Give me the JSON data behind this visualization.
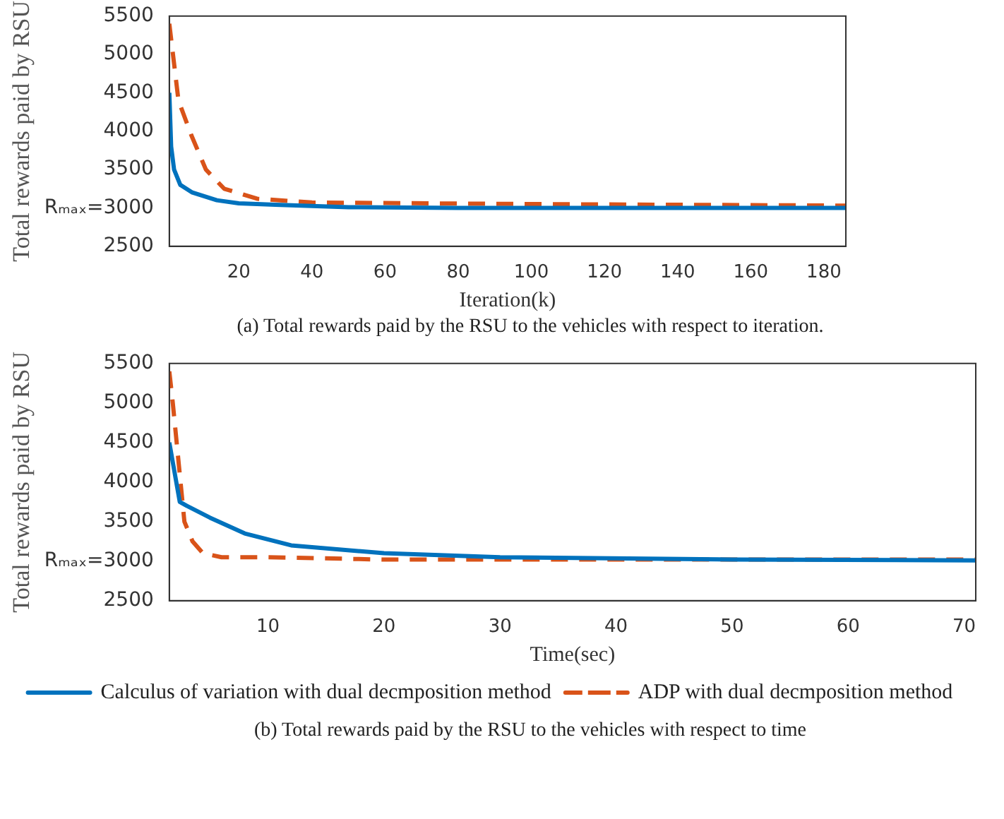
{
  "chart_data": [
    {
      "type": "line",
      "xlabel": "Iteration(k)",
      "ylabel": "Total rewards paid by RSU",
      "annotations": [
        "(a) Total rewards paid by the RSU to the vehicles with respect to iteration."
      ],
      "xlim": [
        1,
        186
      ],
      "xticks": [
        20,
        40,
        60,
        80,
        100,
        120,
        140,
        160,
        180
      ],
      "ylim": [
        2500,
        5500
      ],
      "yticks": [
        2500,
        {
          "value": 3000,
          "label": "Rₘₐₓ=3000"
        },
        3500,
        4000,
        4500,
        5000,
        5500
      ],
      "grid": false,
      "legend": false,
      "marker": "none",
      "series": [
        {
          "color": "#0072bd",
          "line_style": "solid",
          "x": [
            1,
            1.5,
            2.3,
            4,
            7.3,
            14,
            20,
            30,
            50,
            80,
            186
          ],
          "values": [
            4500,
            3800,
            3500,
            3300,
            3200,
            3100,
            3060,
            3040,
            3010,
            3000,
            3000
          ]
        },
        {
          "color": "#d95319",
          "line_style": "dashed",
          "x": [
            1,
            2,
            3.5,
            7,
            11,
            16,
            25,
            40,
            100,
            186
          ],
          "values": [
            5400,
            5000,
            4400,
            3950,
            3500,
            3250,
            3120,
            3070,
            3050,
            3030
          ]
        }
      ]
    },
    {
      "type": "line",
      "xlabel": "Time(sec)",
      "ylabel": "Total rewards paid by RSU",
      "annotations": [
        "(b) Total rewards paid by the RSU to the vehicles with respect to time"
      ],
      "xlim": [
        1.5,
        71
      ],
      "xticks": [
        10,
        20,
        30,
        40,
        50,
        60,
        70
      ],
      "ylim": [
        2500,
        5500
      ],
      "yticks": [
        2500,
        {
          "value": 3000,
          "label": "Rₘₐₓ=3000"
        },
        3500,
        4000,
        4500,
        5000,
        5500
      ],
      "grid": false,
      "legend": "bottom",
      "marker": "none",
      "series": [
        {
          "name": "Calculus of variation with dual decmposition method",
          "color": "#0072bd",
          "line_style": "solid",
          "x": [
            1.5,
            2.4,
            3,
            5,
            8,
            12,
            20,
            30,
            50,
            71
          ],
          "values": [
            4500,
            3750,
            3700,
            3550,
            3350,
            3200,
            3100,
            3050,
            3020,
            3010
          ]
        },
        {
          "name": "ADP with dual decmposition method",
          "color": "#d95319",
          "line_style": "dashed",
          "x": [
            1.5,
            1.8,
            2.2,
            2.8,
            3.5,
            4.4,
            6,
            10,
            20,
            71
          ],
          "values": [
            5400,
            5000,
            4400,
            3500,
            3250,
            3100,
            3050,
            3050,
            3020,
            3020
          ]
        }
      ]
    }
  ]
}
